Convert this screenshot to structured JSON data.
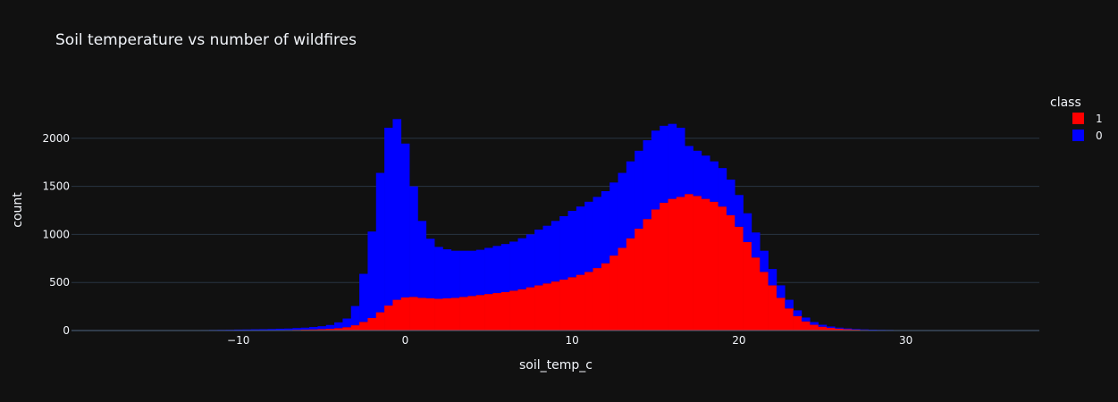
{
  "chart_data": {
    "type": "bar",
    "barmode": "stack",
    "title": "Soil temperature vs number of wildfires",
    "xlabel": "soil_temp_c",
    "ylabel": "count",
    "legend_title": "class",
    "legend_position": "top-right",
    "grid": true,
    "xlim": [
      -20,
      38
    ],
    "ylim": [
      0,
      2370
    ],
    "bin_width": 0.5,
    "x_ticks": [
      -10,
      0,
      10,
      20,
      30
    ],
    "x_tick_labels": [
      "−10",
      "0",
      "10",
      "20",
      "30"
    ],
    "y_ticks": [
      0,
      500,
      1000,
      1500,
      2000
    ],
    "y_tick_labels": [
      "0",
      "500",
      "1000",
      "1500",
      "2000"
    ],
    "x": [
      -14,
      -13.5,
      -13,
      -12.5,
      -12,
      -11.5,
      -11,
      -10.5,
      -10,
      -9.5,
      -9,
      -8.5,
      -8,
      -7.5,
      -7,
      -6.5,
      -6,
      -5.5,
      -5,
      -4.5,
      -4,
      -3.5,
      -3,
      -2.5,
      -2,
      -1.5,
      -1,
      -0.5,
      0,
      0.5,
      1,
      1.5,
      2,
      2.5,
      3,
      3.5,
      4,
      4.5,
      5,
      5.5,
      6,
      6.5,
      7,
      7.5,
      8,
      8.5,
      9,
      9.5,
      10,
      10.5,
      11,
      11.5,
      12,
      12.5,
      13,
      13.5,
      14,
      14.5,
      15,
      15.5,
      16,
      16.5,
      17,
      17.5,
      18,
      18.5,
      19,
      19.5,
      20,
      20.5,
      21,
      21.5,
      22,
      22.5,
      23,
      23.5,
      24,
      24.5,
      25,
      25.5,
      26,
      26.5,
      27,
      27.5,
      28,
      28.5,
      29,
      29.5,
      30,
      30.5,
      31,
      31.5,
      32,
      32.5,
      33,
      33.5,
      34,
      34.5,
      35
    ],
    "series": [
      {
        "name": "1",
        "color": "#ff0000",
        "values": [
          0,
          0,
          0,
          0,
          0,
          1,
          1,
          1,
          2,
          2,
          3,
          3,
          4,
          5,
          6,
          8,
          10,
          12,
          15,
          18,
          25,
          35,
          55,
          90,
          130,
          190,
          260,
          320,
          345,
          350,
          340,
          335,
          330,
          335,
          340,
          350,
          360,
          370,
          380,
          390,
          400,
          415,
          430,
          450,
          470,
          490,
          510,
          530,
          555,
          580,
          610,
          650,
          700,
          780,
          860,
          960,
          1060,
          1160,
          1260,
          1330,
          1370,
          1390,
          1420,
          1400,
          1370,
          1340,
          1290,
          1200,
          1080,
          920,
          760,
          610,
          470,
          340,
          230,
          150,
          95,
          60,
          40,
          28,
          20,
          14,
          10,
          7,
          5,
          4,
          3,
          2,
          2,
          1,
          1,
          1,
          0,
          0,
          0,
          0,
          0,
          0,
          0
        ]
      },
      {
        "name": "0",
        "color": "#0000ff",
        "values": [
          3,
          3,
          4,
          4,
          5,
          5,
          6,
          7,
          8,
          9,
          10,
          11,
          12,
          14,
          15,
          18,
          20,
          25,
          30,
          40,
          60,
          90,
          200,
          500,
          900,
          1450,
          1850,
          1880,
          1600,
          1150,
          800,
          620,
          540,
          510,
          490,
          480,
          470,
          470,
          480,
          490,
          500,
          510,
          530,
          550,
          580,
          600,
          630,
          660,
          690,
          710,
          730,
          740,
          750,
          760,
          780,
          800,
          810,
          820,
          820,
          800,
          780,
          720,
          500,
          470,
          450,
          420,
          400,
          370,
          330,
          300,
          260,
          220,
          170,
          130,
          90,
          60,
          40,
          28,
          20,
          14,
          10,
          8,
          6,
          5,
          4,
          3,
          3,
          2,
          2,
          2,
          1,
          1,
          1,
          1,
          1,
          0,
          0,
          0,
          0
        ]
      }
    ]
  }
}
